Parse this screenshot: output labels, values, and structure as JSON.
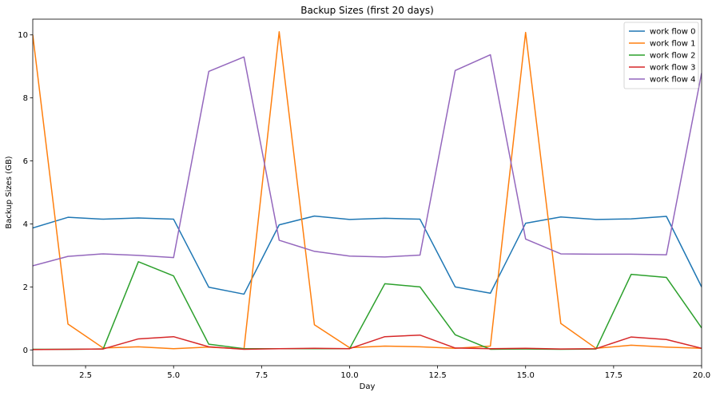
{
  "chart_data": {
    "type": "line",
    "title": "Backup Sizes (first 20 days)",
    "xlabel": "Day",
    "ylabel": "Backup Sizes (GB)",
    "xlim": [
      1,
      20
    ],
    "ylim": [
      -0.5,
      10.5
    ],
    "xticks": [
      2.5,
      5.0,
      7.5,
      10.0,
      12.5,
      15.0,
      17.5,
      20.0
    ],
    "xtick_labels": [
      "2.5",
      "5.0",
      "7.5",
      "10.0",
      "12.5",
      "15.0",
      "17.5",
      "20.0"
    ],
    "yticks": [
      0,
      2,
      4,
      6,
      8,
      10
    ],
    "ytick_labels": [
      "0",
      "2",
      "4",
      "6",
      "8",
      "10"
    ],
    "grid": false,
    "legend_position": "top-right",
    "x": [
      1,
      2,
      3,
      4,
      5,
      6,
      7,
      8,
      9,
      10,
      11,
      12,
      13,
      14,
      15,
      16,
      17,
      18,
      19,
      20
    ],
    "series": [
      {
        "name": "work flow 0",
        "color": "#1f77b4",
        "values": [
          3.87,
          4.21,
          4.15,
          4.19,
          4.15,
          1.99,
          1.77,
          3.97,
          4.25,
          4.14,
          4.18,
          4.15,
          2.0,
          1.8,
          4.02,
          4.22,
          4.14,
          4.16,
          4.24,
          2.0
        ]
      },
      {
        "name": "work flow 1",
        "color": "#ff7f0e",
        "values": [
          10.0,
          0.82,
          0.06,
          0.1,
          0.04,
          0.09,
          0.03,
          10.1,
          0.8,
          0.07,
          0.12,
          0.1,
          0.05,
          0.12,
          10.08,
          0.84,
          0.05,
          0.15,
          0.09,
          0.05
        ]
      },
      {
        "name": "work flow 2",
        "color": "#2ca02c",
        "values": [
          0.02,
          0.02,
          0.03,
          2.8,
          2.35,
          0.18,
          0.04,
          0.04,
          0.04,
          0.04,
          2.1,
          2.0,
          0.48,
          0.02,
          0.03,
          0.02,
          0.03,
          2.4,
          2.3,
          0.7
        ]
      },
      {
        "name": "work flow 3",
        "color": "#d62728",
        "values": [
          0.01,
          0.02,
          0.03,
          0.35,
          0.42,
          0.1,
          0.02,
          0.04,
          0.05,
          0.04,
          0.42,
          0.47,
          0.06,
          0.04,
          0.05,
          0.03,
          0.04,
          0.41,
          0.33,
          0.05
        ]
      },
      {
        "name": "work flow 4",
        "color": "#9467bd",
        "values": [
          2.67,
          2.97,
          3.05,
          3.0,
          2.93,
          8.84,
          9.3,
          3.48,
          3.13,
          2.98,
          2.95,
          3.01,
          8.87,
          9.37,
          3.52,
          3.05,
          3.04,
          3.04,
          3.02,
          8.79
        ]
      }
    ]
  }
}
